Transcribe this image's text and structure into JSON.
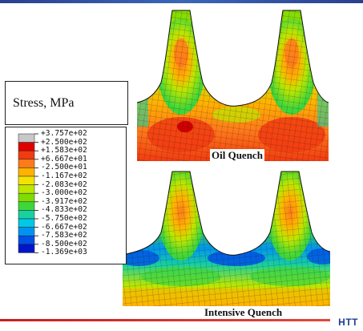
{
  "legend": {
    "title": "Stress, MPa",
    "levels": [
      {
        "label": "+3.757e+02",
        "color": "#c8c8c8"
      },
      {
        "label": "+2.500e+02",
        "color": "#e00000"
      },
      {
        "label": "+1.583e+02",
        "color": "#f23b10"
      },
      {
        "label": "+6.667e+01",
        "color": "#ff7a1a"
      },
      {
        "label": "-2.500e+01",
        "color": "#ffb300"
      },
      {
        "label": "-1.167e+02",
        "color": "#f4e300"
      },
      {
        "label": "-2.083e+02",
        "color": "#bde600"
      },
      {
        "label": "-3.000e+02",
        "color": "#7fdc00"
      },
      {
        "label": "-3.917e+02",
        "color": "#3fd63a"
      },
      {
        "label": "-4.833e+02",
        "color": "#17d1a0"
      },
      {
        "label": "-5.750e+02",
        "color": "#00c8e6"
      },
      {
        "label": "-6.667e+02",
        "color": "#0094f0"
      },
      {
        "label": "-7.583e+02",
        "color": "#0050e6"
      },
      {
        "label": "-8.500e+02",
        "color": "#0016c8"
      },
      {
        "label": "-1.369e+03",
        "color": "#333333"
      }
    ]
  },
  "panels": [
    {
      "id": "oil",
      "caption": "Oil Quench"
    },
    {
      "id": "intensive",
      "caption": "Intensive Quench"
    }
  ],
  "brand": {
    "text": "HTT"
  }
}
